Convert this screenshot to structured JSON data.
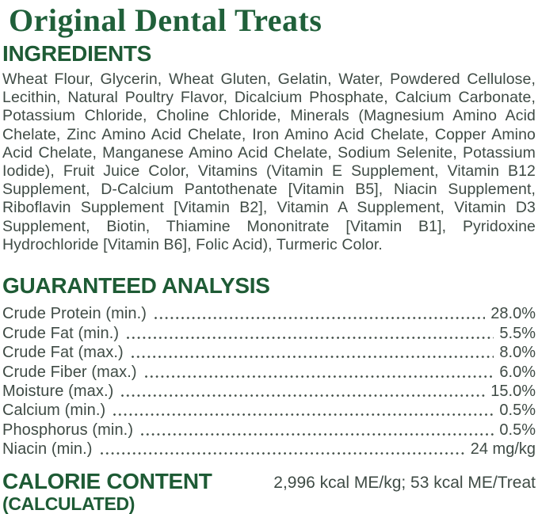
{
  "title": "Original Dental Treats",
  "ingredients": {
    "heading": "INGREDIENTS",
    "text": "Wheat Flour, Glycerin, Wheat Gluten, Gelatin, Water, Powdered Cellulose, Lecithin, Natural Poultry Flavor, Dicalcium Phosphate, Calcium Carbonate, Potassium Chloride, Choline Chloride, Minerals (Magnesium Amino Acid Chelate, Zinc Amino Acid Chelate, Iron Amino Acid Chelate, Copper Amino Acid Chelate, Manganese Amino Acid Chelate, Sodium Selenite, Potassium Iodide), Fruit Juice Color, Vitamins (Vitamin E Supplement, Vitamin B12 Supplement, D-Calcium Pantothenate [Vitamin B5], Niacin Supplement, Riboflavin Supplement [Vitamin B2], Vitamin A Supplement, Vitamin D3 Supplement, Biotin, Thiamine Mononitrate [Vitamin B1], Pyridoxine Hydrochloride [Vitamin B6], Folic Acid), Turmeric Color."
  },
  "guaranteed_analysis": {
    "heading": "GUARANTEED ANALYSIS",
    "rows": [
      {
        "label": "Crude Protein (min.)",
        "value": "28.0%"
      },
      {
        "label": "Crude Fat (min.)",
        "value": "5.5%"
      },
      {
        "label": "Crude Fat (max.)",
        "value": "8.0%"
      },
      {
        "label": "Crude Fiber (max.)",
        "value": "6.0%"
      },
      {
        "label": "Moisture (max.)",
        "value": "15.0%"
      },
      {
        "label": "Calcium (min.)",
        "value": "0.5%"
      },
      {
        "label": "Phosphorus (min.)",
        "value": "0.5%"
      },
      {
        "label": "Niacin (min.)",
        "value": "24 mg/kg"
      }
    ]
  },
  "calorie_content": {
    "heading_line1": "CALORIE CONTENT",
    "heading_line2": "(CALCULATED)",
    "value": "2,996 kcal ME/kg; 53 kcal ME/Treat"
  },
  "colors": {
    "heading_green": "#1e5b35",
    "title_green": "#20603a",
    "body_text": "#3f4b45",
    "background": "#ffffff"
  }
}
